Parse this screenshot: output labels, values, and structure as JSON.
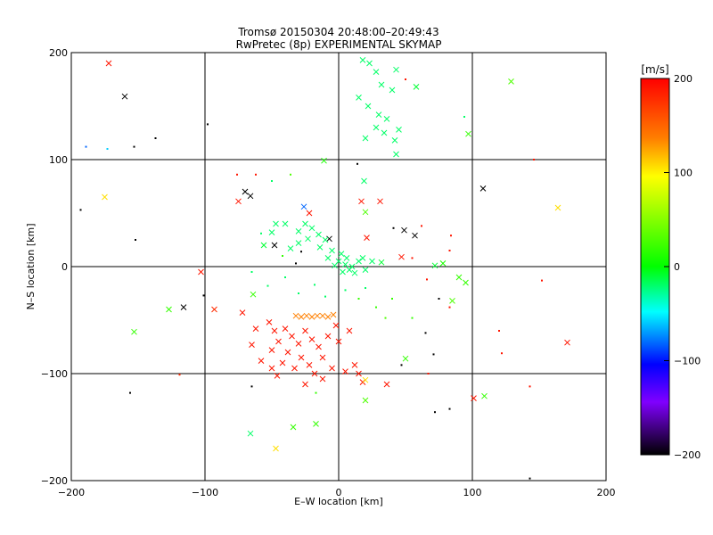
{
  "chart_data": {
    "type": "scatter",
    "title": "Tromsø 20150304 20:48:00–20:49:43",
    "subtitle": "RwPretec (8p) EXPERIMENTAL SKYMAP",
    "xlabel": "E–W location [km]",
    "ylabel": "N–S location [km]",
    "xlim": [
      -200,
      200
    ],
    "ylim": [
      -200,
      200
    ],
    "x_ticks": [
      -200,
      -100,
      0,
      100,
      200
    ],
    "y_ticks": [
      -200,
      -100,
      0,
      100,
      200
    ],
    "x_tick_labels": [
      "−200",
      "−100",
      "0",
      "100",
      "200"
    ],
    "y_tick_labels": [
      "−200",
      "−100",
      "0",
      "100",
      "200"
    ],
    "grid_lines": [
      -100,
      0,
      100
    ],
    "grid": true,
    "colorbar": {
      "label": "[m/s]",
      "range": [
        -200,
        200
      ],
      "ticks": [
        200,
        100,
        0,
        -100,
        -200
      ],
      "tick_labels": [
        "200",
        "100",
        "0",
        "−100",
        "−200"
      ],
      "colors": [
        "#ff0000",
        "#ff8000",
        "#ffff00",
        "#00ff00",
        "#00ffff",
        "#0000ff",
        "#8000ff",
        "#000000"
      ]
    },
    "markers": [
      "x",
      "dot"
    ],
    "points": [
      {
        "x": -172,
        "y": 190,
        "v": 190,
        "m": "x"
      },
      {
        "x": -160,
        "y": 159,
        "v": -200,
        "m": "x"
      },
      {
        "x": -175,
        "y": 65,
        "v": 110,
        "m": "x"
      },
      {
        "x": -153,
        "y": 112,
        "v": -200,
        "m": "dot"
      },
      {
        "x": -137,
        "y": 120,
        "v": -200,
        "m": "dot"
      },
      {
        "x": -189,
        "y": 112,
        "v": -80,
        "m": "dot"
      },
      {
        "x": -173,
        "y": 110,
        "v": -60,
        "m": "dot"
      },
      {
        "x": -98,
        "y": 133,
        "v": -200,
        "m": "dot"
      },
      {
        "x": -193,
        "y": 53,
        "v": -200,
        "m": "dot"
      },
      {
        "x": -152,
        "y": 25,
        "v": -200,
        "m": "dot"
      },
      {
        "x": -103,
        "y": -5,
        "v": 190,
        "m": "x"
      },
      {
        "x": -116,
        "y": -38,
        "v": -200,
        "m": "x"
      },
      {
        "x": -127,
        "y": -40,
        "v": 20,
        "m": "x"
      },
      {
        "x": -93,
        "y": -40,
        "v": 180,
        "m": "x"
      },
      {
        "x": -153,
        "y": -61,
        "v": 20,
        "m": "x"
      },
      {
        "x": -101,
        "y": -27,
        "v": -200,
        "m": "dot"
      },
      {
        "x": -156,
        "y": -118,
        "v": -200,
        "m": "dot"
      },
      {
        "x": -119,
        "y": -101,
        "v": 180,
        "m": "dot"
      },
      {
        "x": -65,
        "y": -112,
        "v": -200,
        "m": "dot"
      },
      {
        "x": -66,
        "y": -156,
        "v": -20,
        "m": "x"
      },
      {
        "x": -47,
        "y": -170,
        "v": 110,
        "m": "x"
      },
      {
        "x": -34,
        "y": -150,
        "v": 20,
        "m": "x"
      },
      {
        "x": -17,
        "y": -147,
        "v": 20,
        "m": "x"
      },
      {
        "x": 18,
        "y": 193,
        "v": -20,
        "m": "x"
      },
      {
        "x": 23,
        "y": 190,
        "v": -20,
        "m": "x"
      },
      {
        "x": 28,
        "y": 182,
        "v": -20,
        "m": "x"
      },
      {
        "x": 43,
        "y": 184,
        "v": -20,
        "m": "x"
      },
      {
        "x": 58,
        "y": 168,
        "v": -10,
        "m": "x"
      },
      {
        "x": 50,
        "y": 175,
        "v": 190,
        "m": "dot"
      },
      {
        "x": 40,
        "y": 165,
        "v": -20,
        "m": "x"
      },
      {
        "x": 32,
        "y": 170,
        "v": -20,
        "m": "x"
      },
      {
        "x": 15,
        "y": 158,
        "v": -20,
        "m": "x"
      },
      {
        "x": 22,
        "y": 150,
        "v": -20,
        "m": "x"
      },
      {
        "x": 30,
        "y": 142,
        "v": -20,
        "m": "x"
      },
      {
        "x": 36,
        "y": 138,
        "v": -20,
        "m": "x"
      },
      {
        "x": 28,
        "y": 130,
        "v": -20,
        "m": "x"
      },
      {
        "x": 34,
        "y": 125,
        "v": -20,
        "m": "x"
      },
      {
        "x": 45,
        "y": 128,
        "v": -20,
        "m": "x"
      },
      {
        "x": 42,
        "y": 118,
        "v": -20,
        "m": "x"
      },
      {
        "x": 20,
        "y": 120,
        "v": -20,
        "m": "x"
      },
      {
        "x": 43,
        "y": 105,
        "v": -20,
        "m": "x"
      },
      {
        "x": 97,
        "y": 124,
        "v": 20,
        "m": "x"
      },
      {
        "x": 129,
        "y": 173,
        "v": 30,
        "m": "x"
      },
      {
        "x": 94,
        "y": 140,
        "v": -20,
        "m": "dot"
      },
      {
        "x": 146,
        "y": 100,
        "v": 190,
        "m": "dot"
      },
      {
        "x": -11,
        "y": 99,
        "v": 10,
        "m": "x"
      },
      {
        "x": 14,
        "y": 96,
        "v": -200,
        "m": "dot"
      },
      {
        "x": 19,
        "y": 80,
        "v": -20,
        "m": "x"
      },
      {
        "x": 108,
        "y": 73,
        "v": -200,
        "m": "x"
      },
      {
        "x": 164,
        "y": 55,
        "v": 110,
        "m": "x"
      },
      {
        "x": -66,
        "y": 66,
        "v": -200,
        "m": "x"
      },
      {
        "x": -70,
        "y": 70,
        "v": -200,
        "m": "x"
      },
      {
        "x": -75,
        "y": 61,
        "v": 190,
        "m": "x"
      },
      {
        "x": -76,
        "y": 86,
        "v": 190,
        "m": "dot"
      },
      {
        "x": -62,
        "y": 86,
        "v": 190,
        "m": "dot"
      },
      {
        "x": -50,
        "y": 80,
        "v": -20,
        "m": "dot"
      },
      {
        "x": -36,
        "y": 86,
        "v": 30,
        "m": "dot"
      },
      {
        "x": -22,
        "y": 50,
        "v": 190,
        "m": "x"
      },
      {
        "x": -26,
        "y": 56,
        "v": -80,
        "m": "x"
      },
      {
        "x": 17,
        "y": 61,
        "v": 190,
        "m": "x"
      },
      {
        "x": 31,
        "y": 61,
        "v": 190,
        "m": "x"
      },
      {
        "x": 20,
        "y": 51,
        "v": 30,
        "m": "x"
      },
      {
        "x": 41,
        "y": 36,
        "v": -200,
        "m": "dot"
      },
      {
        "x": 49,
        "y": 34,
        "v": -200,
        "m": "x"
      },
      {
        "x": 57,
        "y": 29,
        "v": -200,
        "m": "x"
      },
      {
        "x": 62,
        "y": 38,
        "v": 190,
        "m": "dot"
      },
      {
        "x": -7,
        "y": 26,
        "v": -200,
        "m": "x"
      },
      {
        "x": 21,
        "y": 27,
        "v": 190,
        "m": "x"
      },
      {
        "x": -56,
        "y": 20,
        "v": -10,
        "m": "x"
      },
      {
        "x": -48,
        "y": 20,
        "v": -200,
        "m": "x"
      },
      {
        "x": -47,
        "y": 40,
        "v": -20,
        "m": "x"
      },
      {
        "x": -50,
        "y": 32,
        "v": -20,
        "m": "x"
      },
      {
        "x": -40,
        "y": 40,
        "v": -20,
        "m": "x"
      },
      {
        "x": -30,
        "y": 33,
        "v": -20,
        "m": "x"
      },
      {
        "x": -25,
        "y": 40,
        "v": -20,
        "m": "x"
      },
      {
        "x": -20,
        "y": 36,
        "v": -20,
        "m": "x"
      },
      {
        "x": -15,
        "y": 30,
        "v": -20,
        "m": "x"
      },
      {
        "x": -10,
        "y": 25,
        "v": -20,
        "m": "x"
      },
      {
        "x": -23,
        "y": 26,
        "v": -20,
        "m": "x"
      },
      {
        "x": -30,
        "y": 22,
        "v": -20,
        "m": "x"
      },
      {
        "x": -36,
        "y": 17,
        "v": -20,
        "m": "x"
      },
      {
        "x": -14,
        "y": 18,
        "v": -20,
        "m": "x"
      },
      {
        "x": -5,
        "y": 15,
        "v": -20,
        "m": "x"
      },
      {
        "x": 2,
        "y": 12,
        "v": -20,
        "m": "x"
      },
      {
        "x": -8,
        "y": 8,
        "v": -20,
        "m": "x"
      },
      {
        "x": 0,
        "y": 5,
        "v": -20,
        "m": "x"
      },
      {
        "x": 5,
        "y": 2,
        "v": -20,
        "m": "x"
      },
      {
        "x": 10,
        "y": 0,
        "v": -20,
        "m": "x"
      },
      {
        "x": 15,
        "y": 5,
        "v": -20,
        "m": "x"
      },
      {
        "x": 8,
        "y": -3,
        "v": -20,
        "m": "x"
      },
      {
        "x": 12,
        "y": -6,
        "v": -20,
        "m": "x"
      },
      {
        "x": 20,
        "y": -3,
        "v": -20,
        "m": "x"
      },
      {
        "x": 3,
        "y": -5,
        "v": -20,
        "m": "x"
      },
      {
        "x": 18,
        "y": 8,
        "v": -20,
        "m": "x"
      },
      {
        "x": 25,
        "y": 5,
        "v": -20,
        "m": "x"
      },
      {
        "x": -3,
        "y": 1,
        "v": -20,
        "m": "x"
      },
      {
        "x": 6,
        "y": 8,
        "v": -20,
        "m": "x"
      },
      {
        "x": 32,
        "y": 4,
        "v": -10,
        "m": "x"
      },
      {
        "x": 47,
        "y": 9,
        "v": 190,
        "m": "x"
      },
      {
        "x": 55,
        "y": 8,
        "v": 190,
        "m": "dot"
      },
      {
        "x": 72,
        "y": 1,
        "v": -10,
        "m": "x"
      },
      {
        "x": 78,
        "y": 3,
        "v": 10,
        "m": "x"
      },
      {
        "x": 90,
        "y": -10,
        "v": 20,
        "m": "x"
      },
      {
        "x": 95,
        "y": -15,
        "v": 20,
        "m": "x"
      },
      {
        "x": 85,
        "y": -32,
        "v": 30,
        "m": "x"
      },
      {
        "x": 75,
        "y": -30,
        "v": -200,
        "m": "dot"
      },
      {
        "x": 83,
        "y": 15,
        "v": 190,
        "m": "dot"
      },
      {
        "x": 84,
        "y": 29,
        "v": 190,
        "m": "dot"
      },
      {
        "x": -28,
        "y": 14,
        "v": -200,
        "m": "dot"
      },
      {
        "x": -32,
        "y": 3,
        "v": -200,
        "m": "dot"
      },
      {
        "x": -42,
        "y": 10,
        "v": 20,
        "m": "dot"
      },
      {
        "x": -58,
        "y": 31,
        "v": -20,
        "m": "dot"
      },
      {
        "x": -65,
        "y": -5,
        "v": -20,
        "m": "dot"
      },
      {
        "x": -53,
        "y": -18,
        "v": -20,
        "m": "dot"
      },
      {
        "x": -40,
        "y": -10,
        "v": -20,
        "m": "dot"
      },
      {
        "x": -30,
        "y": -25,
        "v": -20,
        "m": "dot"
      },
      {
        "x": -18,
        "y": -17,
        "v": -20,
        "m": "dot"
      },
      {
        "x": -10,
        "y": -28,
        "v": -20,
        "m": "dot"
      },
      {
        "x": 5,
        "y": -22,
        "v": -20,
        "m": "dot"
      },
      {
        "x": 15,
        "y": -30,
        "v": 20,
        "m": "dot"
      },
      {
        "x": 28,
        "y": -38,
        "v": 20,
        "m": "dot"
      },
      {
        "x": 40,
        "y": -30,
        "v": 20,
        "m": "dot"
      },
      {
        "x": 55,
        "y": -48,
        "v": 20,
        "m": "dot"
      },
      {
        "x": 35,
        "y": -48,
        "v": 30,
        "m": "dot"
      },
      {
        "x": 20,
        "y": -20,
        "v": -20,
        "m": "dot"
      },
      {
        "x": -64,
        "y": -26,
        "v": 20,
        "m": "x"
      },
      {
        "x": -72,
        "y": -43,
        "v": 190,
        "m": "x"
      },
      {
        "x": -62,
        "y": -58,
        "v": 190,
        "m": "x"
      },
      {
        "x": -65,
        "y": -73,
        "v": 190,
        "m": "x"
      },
      {
        "x": -52,
        "y": -52,
        "v": 190,
        "m": "x"
      },
      {
        "x": -48,
        "y": -60,
        "v": 190,
        "m": "x"
      },
      {
        "x": -45,
        "y": -70,
        "v": 190,
        "m": "x"
      },
      {
        "x": -50,
        "y": -78,
        "v": 190,
        "m": "x"
      },
      {
        "x": -40,
        "y": -58,
        "v": 190,
        "m": "x"
      },
      {
        "x": -35,
        "y": -65,
        "v": 190,
        "m": "x"
      },
      {
        "x": -38,
        "y": -80,
        "v": 190,
        "m": "x"
      },
      {
        "x": -30,
        "y": -72,
        "v": 190,
        "m": "x"
      },
      {
        "x": -25,
        "y": -60,
        "v": 190,
        "m": "x"
      },
      {
        "x": -20,
        "y": -68,
        "v": 190,
        "m": "x"
      },
      {
        "x": -28,
        "y": -85,
        "v": 190,
        "m": "x"
      },
      {
        "x": -42,
        "y": -90,
        "v": 190,
        "m": "x"
      },
      {
        "x": -50,
        "y": -95,
        "v": 190,
        "m": "x"
      },
      {
        "x": -46,
        "y": -102,
        "v": 190,
        "m": "x"
      },
      {
        "x": -33,
        "y": -95,
        "v": 190,
        "m": "x"
      },
      {
        "x": -22,
        "y": -92,
        "v": 190,
        "m": "x"
      },
      {
        "x": -15,
        "y": -75,
        "v": 190,
        "m": "x"
      },
      {
        "x": -12,
        "y": -85,
        "v": 190,
        "m": "x"
      },
      {
        "x": -8,
        "y": -65,
        "v": 190,
        "m": "x"
      },
      {
        "x": -2,
        "y": -55,
        "v": 190,
        "m": "x"
      },
      {
        "x": -5,
        "y": -95,
        "v": 190,
        "m": "x"
      },
      {
        "x": -18,
        "y": -100,
        "v": 190,
        "m": "x"
      },
      {
        "x": -12,
        "y": -105,
        "v": 190,
        "m": "x"
      },
      {
        "x": -25,
        "y": -110,
        "v": 190,
        "m": "x"
      },
      {
        "x": 5,
        "y": -98,
        "v": 190,
        "m": "x"
      },
      {
        "x": 12,
        "y": -92,
        "v": 190,
        "m": "x"
      },
      {
        "x": 15,
        "y": -100,
        "v": 190,
        "m": "x"
      },
      {
        "x": 8,
        "y": -60,
        "v": 190,
        "m": "x"
      },
      {
        "x": 0,
        "y": -70,
        "v": 190,
        "m": "x"
      },
      {
        "x": -58,
        "y": -88,
        "v": 190,
        "m": "x"
      },
      {
        "x": 18,
        "y": -108,
        "v": 190,
        "m": "x"
      },
      {
        "x": 36,
        "y": -110,
        "v": 190,
        "m": "x"
      },
      {
        "x": -32,
        "y": -46,
        "v": 140,
        "m": "x"
      },
      {
        "x": -28,
        "y": -47,
        "v": 140,
        "m": "x"
      },
      {
        "x": -24,
        "y": -46,
        "v": 140,
        "m": "x"
      },
      {
        "x": -20,
        "y": -47,
        "v": 140,
        "m": "x"
      },
      {
        "x": -16,
        "y": -46,
        "v": 140,
        "m": "x"
      },
      {
        "x": -12,
        "y": -46,
        "v": 140,
        "m": "x"
      },
      {
        "x": -8,
        "y": -47,
        "v": 140,
        "m": "x"
      },
      {
        "x": -4,
        "y": -45,
        "v": 140,
        "m": "x"
      },
      {
        "x": -17,
        "y": -118,
        "v": 20,
        "m": "dot"
      },
      {
        "x": 20,
        "y": -106,
        "v": 110,
        "m": "x"
      },
      {
        "x": 20,
        "y": -125,
        "v": 30,
        "m": "x"
      },
      {
        "x": 50,
        "y": -86,
        "v": 20,
        "m": "x"
      },
      {
        "x": 47,
        "y": -92,
        "v": -200,
        "m": "dot"
      },
      {
        "x": 72,
        "y": -136,
        "v": -200,
        "m": "dot"
      },
      {
        "x": 83,
        "y": -133,
        "v": -200,
        "m": "dot"
      },
      {
        "x": 101,
        "y": -123,
        "v": 190,
        "m": "x"
      },
      {
        "x": 109,
        "y": -121,
        "v": 20,
        "m": "x"
      },
      {
        "x": 122,
        "y": -81,
        "v": 190,
        "m": "dot"
      },
      {
        "x": 120,
        "y": -60,
        "v": 190,
        "m": "dot"
      },
      {
        "x": 143,
        "y": -112,
        "v": 190,
        "m": "dot"
      },
      {
        "x": 171,
        "y": -71,
        "v": 190,
        "m": "x"
      },
      {
        "x": 152,
        "y": -13,
        "v": 190,
        "m": "dot"
      },
      {
        "x": 67,
        "y": -100,
        "v": 190,
        "m": "dot"
      },
      {
        "x": 71,
        "y": -82,
        "v": -200,
        "m": "dot"
      },
      {
        "x": 65,
        "y": -62,
        "v": -200,
        "m": "dot"
      },
      {
        "x": 66,
        "y": -12,
        "v": 190,
        "m": "dot"
      },
      {
        "x": 83,
        "y": -38,
        "v": 190,
        "m": "dot"
      },
      {
        "x": 143,
        "y": -198,
        "v": -200,
        "m": "dot"
      }
    ]
  }
}
